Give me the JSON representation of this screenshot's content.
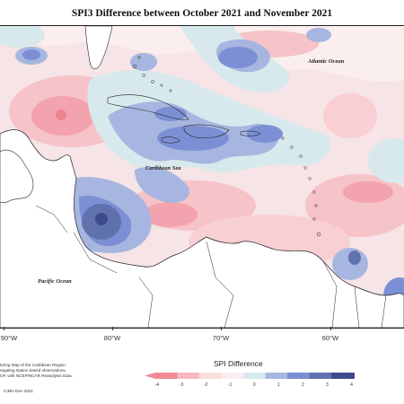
{
  "title": "SPI3 Difference between October 2021 and November 2021",
  "labels": {
    "atlantic": "Atlantic Ocean",
    "caribbean": "Caribbean Sea",
    "pacific": "Pacific Ocean"
  },
  "longitudes": [
    "90°W",
    "80°W",
    "70°W",
    "60°W"
  ],
  "legend": {
    "title": "SPI Difference",
    "ticks": [
      "-4",
      "-3",
      "-2",
      "-1",
      "0",
      "1",
      "2",
      "3",
      "4"
    ],
    "colors": [
      "#f28a96",
      "#f7b9bd",
      "#fbdcdc",
      "#fbeeee",
      "#d7e9ec",
      "#a7b6e0",
      "#7d8fd4",
      "#5f72ad",
      "#3e4a8c"
    ]
  },
  "description": [
    "toring Map of the Caribbean Region.",
    "regating station based observations,",
    "OF, with NCEP/NCAR Reanalysis Data."
  ],
  "credit": "CIMH Dec-2021",
  "colors": {
    "ocean_base": "#f6e4e6",
    "land": "#ffffff",
    "strong_pos": "#3e4a8c",
    "pos": "#7d8fd4",
    "neg": "#f28a96"
  }
}
